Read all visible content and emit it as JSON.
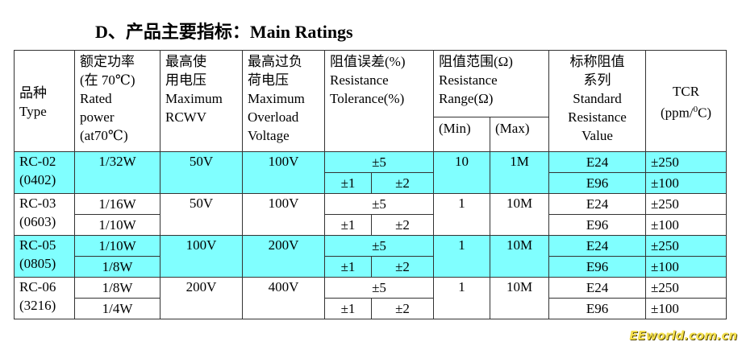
{
  "title": "D、产品主要指标：Main Ratings",
  "header": {
    "type": [
      "品种",
      "Type"
    ],
    "power": [
      "额定功率",
      "(在 70℃)",
      "Rated",
      "power",
      "(at70℃)"
    ],
    "rcwv": [
      "最高使",
      "用电压",
      "Maximum",
      "RCWV"
    ],
    "overload": [
      "最高过负",
      "荷电压",
      "Maximum",
      "Overload",
      "Voltage"
    ],
    "tolerance": [
      "阻值误差(%)",
      "Resistance",
      "Tolerance(%)"
    ],
    "range": [
      "阻值范围(Ω)",
      "Resistance",
      "Range(Ω)"
    ],
    "range_min": "(Min)",
    "range_max": "(Max)",
    "series": [
      "标称阻值",
      "系列",
      "Standard",
      "Resistance",
      "Value"
    ],
    "tcr": {
      "name": "TCR",
      "unit_pre": "(ppm/",
      "unit_sup": "0",
      "unit_post": "C)"
    }
  },
  "highlight_color": "#80ffff",
  "rows": [
    {
      "type": [
        "RC-02",
        "(0402)"
      ],
      "power": [
        "1/32W"
      ],
      "rcwv": "50V",
      "overload": "100V",
      "tol": "±5",
      "tol2": [
        "±1",
        "±2"
      ],
      "min": "10",
      "max": "1M",
      "series": [
        "E24",
        "E96"
      ],
      "tcr": [
        "±250",
        "±100"
      ],
      "highlight": true
    },
    {
      "type": [
        "RC-03",
        "(0603)"
      ],
      "power": [
        "1/16W",
        "1/10W"
      ],
      "rcwv": "50V",
      "overload": "100V",
      "tol": "±5",
      "tol2": [
        "±1",
        "±2"
      ],
      "min": "1",
      "max": "10M",
      "series": [
        "E24",
        "E96"
      ],
      "tcr": [
        "±250",
        "±100"
      ],
      "highlight": false
    },
    {
      "type": [
        "RC-05",
        "(0805)"
      ],
      "power": [
        "1/10W",
        "1/8W"
      ],
      "rcwv": "100V",
      "overload": "200V",
      "tol": "±5",
      "tol2": [
        "±1",
        "±2"
      ],
      "min": "1",
      "max": "10M",
      "series": [
        "E24",
        "E96"
      ],
      "tcr": [
        "±250",
        "±100"
      ],
      "highlight": true
    },
    {
      "type": [
        "RC-06",
        "(3216)"
      ],
      "power": [
        "1/8W",
        "1/4W"
      ],
      "rcwv": "200V",
      "overload": "400V",
      "tol": "±5",
      "tol2": [
        "±1",
        "±2"
      ],
      "min": "1",
      "max": "10M",
      "series": [
        "E24",
        "E96"
      ],
      "tcr": [
        "±250",
        "±100"
      ],
      "highlight": false
    }
  ],
  "watermark": "EEworld.com.cn"
}
